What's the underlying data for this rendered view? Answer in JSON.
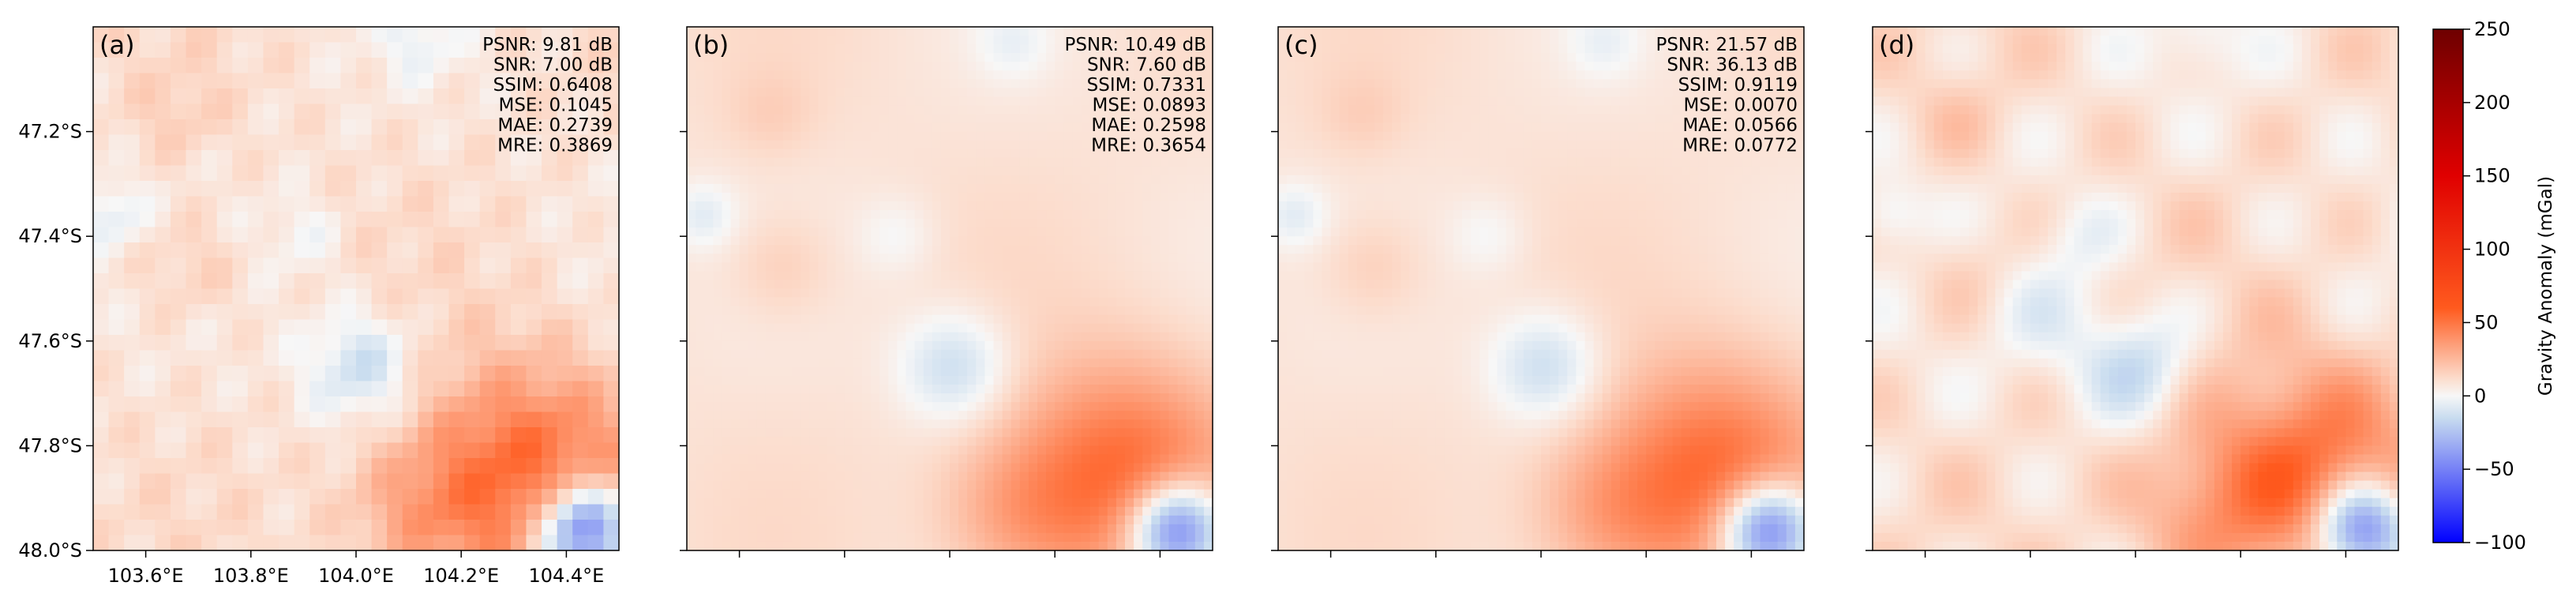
{
  "figure": {
    "panels": [
      {
        "label": "(a)",
        "style": "pixelated",
        "metrics": [
          "PSNR: 9.81 dB",
          "SNR: 7.00 dB",
          "SSIM: 0.6408",
          "MSE: 0.1045",
          "MAE: 0.2739",
          "MRE: 0.3869"
        ]
      },
      {
        "label": "(b)",
        "style": "smooth",
        "metrics": [
          "PSNR: 10.49 dB",
          "SNR: 7.60 dB",
          "SSIM: 0.7331",
          "MSE: 0.0893",
          "MAE: 0.2598",
          "MRE: 0.3654"
        ]
      },
      {
        "label": "(c)",
        "style": "smooth",
        "metrics": [
          "PSNR: 21.57 dB",
          "SNR: 36.13 dB",
          "SSIM: 0.9119",
          "MSE: 0.0070",
          "MAE: 0.0566",
          "MRE: 0.0772"
        ]
      },
      {
        "label": "(d)",
        "style": "smooth-detailed",
        "metrics": []
      }
    ],
    "x_tick_labels": [
      "103.6°E",
      "103.8°E",
      "104.0°E",
      "104.2°E",
      "104.4°E"
    ],
    "y_tick_labels": [
      "47.2°S",
      "47.4°S",
      "47.6°S",
      "47.8°S",
      "48.0°S"
    ],
    "colorbar": {
      "label": "Gravity Anomaly (mGal)",
      "ticks": [
        "250",
        "200",
        "150",
        "100",
        "50",
        "0",
        "−50",
        "−100"
      ],
      "colors": {
        "min": "#0000ff",
        "light_negative": "#c8dcef",
        "zero": "#f7f7f7",
        "light_positive": "#fcdccc",
        "mid_positive": "#ff5a1e",
        "high": "#e00000",
        "max": "#6e0000"
      }
    }
  },
  "chart_data": {
    "type": "heatmap",
    "colormap": "diverging blue-white-red, centered at 0",
    "value_range": [
      -100,
      250
    ],
    "xlim": [
      "103.5°E",
      "104.5°E"
    ],
    "ylim": [
      "48.0°S",
      "47.0°S"
    ],
    "x_ticks": [
      103.6,
      103.8,
      104.0,
      104.2,
      104.4
    ],
    "y_ticks": [
      -47.2,
      -47.4,
      -47.6,
      -47.8,
      -48.0
    ],
    "typical_field_range_mgal": [
      -40,
      60
    ],
    "features": [
      {
        "description": "strong positive anomaly",
        "lon": 104.3,
        "lat": -47.85,
        "approx_value": 55
      },
      {
        "description": "negative anomaly",
        "lon": 104.45,
        "lat": -47.96,
        "approx_value": -35
      },
      {
        "description": "weak negative anomaly",
        "lon": 104.0,
        "lat": -47.65,
        "approx_value": -12
      },
      {
        "description": "weak positive anomaly",
        "lon": 103.7,
        "lat": -47.48,
        "approx_value": 18
      }
    ],
    "panels": [
      {
        "label": "(a)",
        "PSNR_dB": 9.81,
        "SNR_dB": 7.0,
        "SSIM": 0.6408,
        "MSE": 0.1045,
        "MAE": 0.2739,
        "MRE": 0.3869
      },
      {
        "label": "(b)",
        "PSNR_dB": 10.49,
        "SNR_dB": 7.6,
        "SSIM": 0.7331,
        "MSE": 0.0893,
        "MAE": 0.2598,
        "MRE": 0.3654
      },
      {
        "label": "(c)",
        "PSNR_dB": 21.57,
        "SNR_dB": 36.13,
        "SSIM": 0.9119,
        "MSE": 0.007,
        "MAE": 0.0566,
        "MRE": 0.0772
      },
      {
        "label": "(d)"
      }
    ],
    "colorbar_label": "Gravity Anomaly (mGal)",
    "colorbar_ticks": [
      250,
      200,
      150,
      100,
      50,
      0,
      -50,
      -100
    ]
  }
}
